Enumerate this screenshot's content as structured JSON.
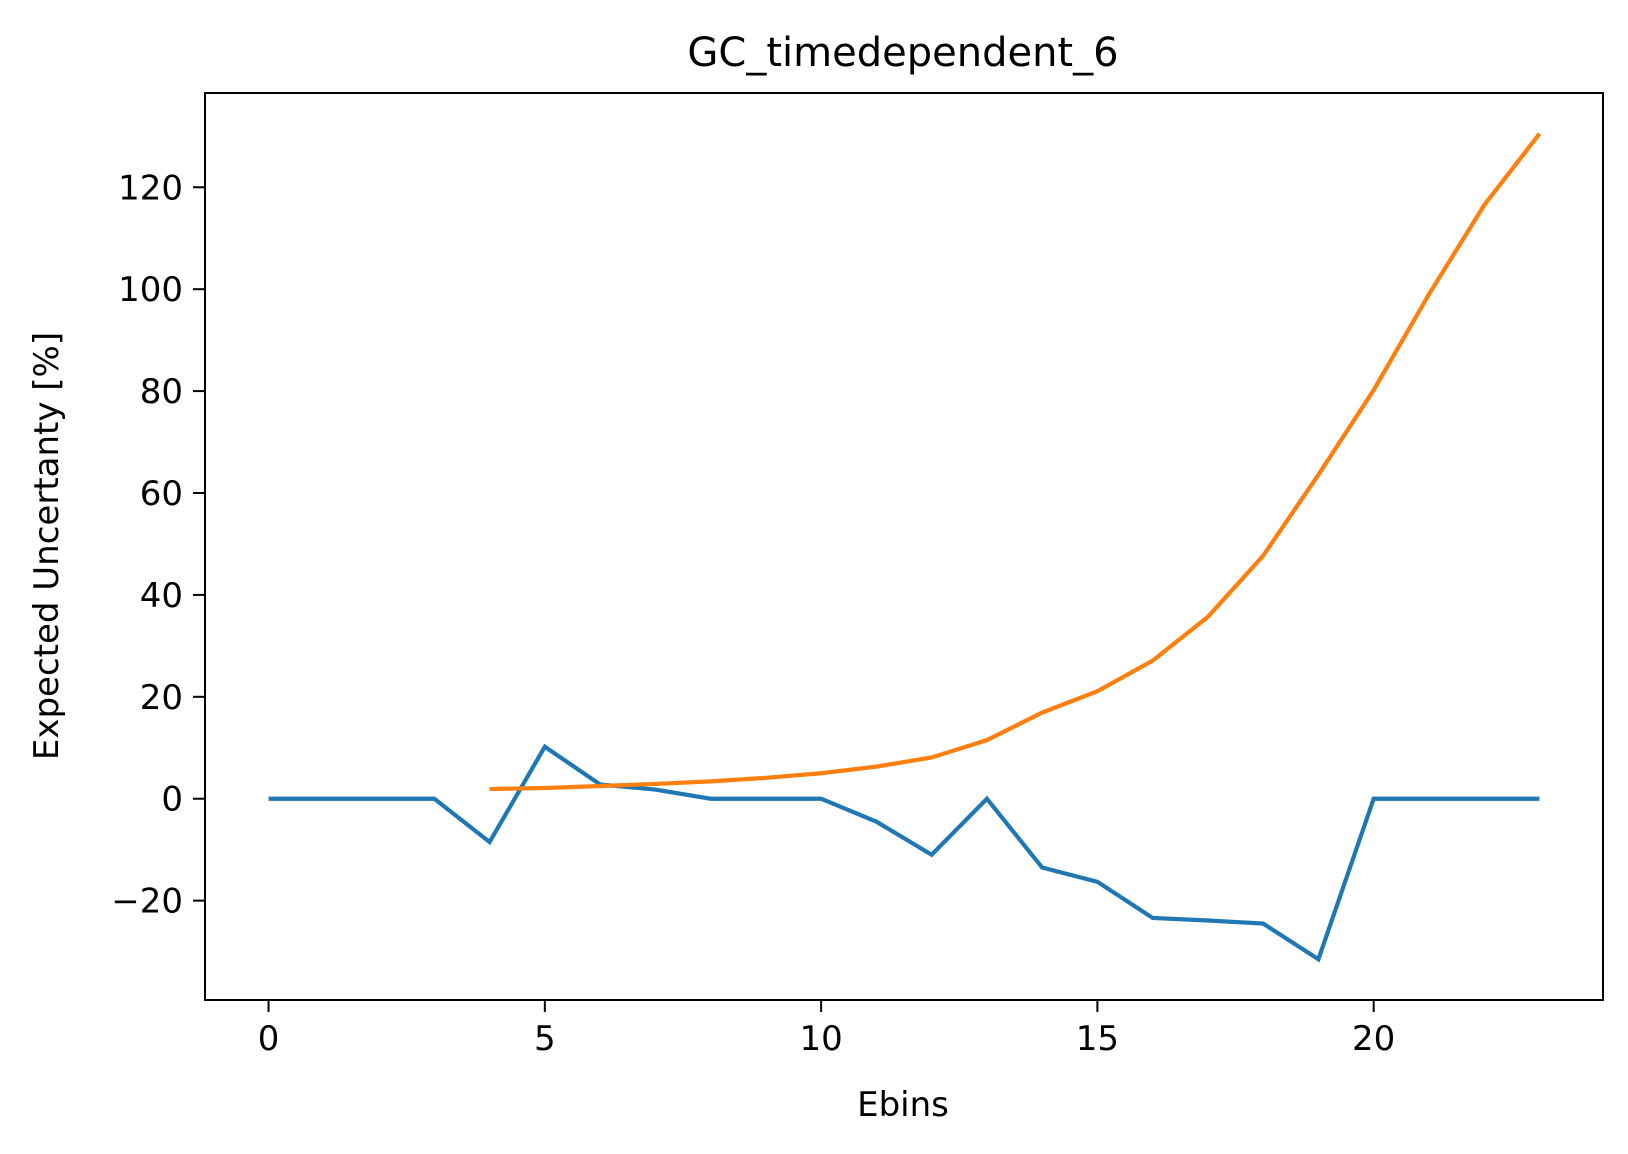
{
  "chart_data": {
    "type": "line",
    "title": "GC_timedependent_6",
    "xlabel": "Ebins",
    "ylabel": "Expected Uncertanty [%]",
    "xlim": [
      -1.15,
      24.15
    ],
    "ylim": [
      -39.5,
      138.5
    ],
    "xticks": [
      0,
      5,
      10,
      15,
      20
    ],
    "xtick_labels": [
      "0",
      "5",
      "10",
      "15",
      "20"
    ],
    "yticks": [
      -20,
      0,
      20,
      40,
      60,
      80,
      100,
      120
    ],
    "ytick_labels": [
      "−20",
      "0",
      "20",
      "40",
      "60",
      "80",
      "100",
      "120"
    ],
    "grid": false,
    "legend": false,
    "series": [
      {
        "color": "#1f77b4",
        "x": [
          0,
          1,
          2,
          3,
          4,
          5,
          6,
          7,
          8,
          9,
          10,
          11,
          12,
          13,
          14,
          15,
          16,
          17,
          18,
          19,
          20,
          21,
          22,
          23
        ],
        "y": [
          0,
          0,
          0,
          0,
          -8.5,
          10.2,
          2.8,
          1.8,
          0,
          0,
          0,
          -4.5,
          -11,
          0,
          -13.5,
          -16.3,
          -23.4,
          -23.9,
          -24.5,
          -31.5,
          0,
          0,
          0,
          0
        ]
      },
      {
        "color": "#ff7f0e",
        "x": [
          4,
          5,
          6,
          7,
          8,
          9,
          10,
          11,
          12,
          13,
          14,
          15,
          16,
          17,
          18,
          19,
          20,
          21,
          22,
          23
        ],
        "y": [
          1.9,
          2.1,
          2.5,
          2.9,
          3.4,
          4.1,
          5.0,
          6.3,
          8.1,
          11.5,
          16.9,
          21.1,
          27.1,
          35.7,
          47.7,
          63.6,
          80.2,
          99.0,
          116.5,
          130.5
        ]
      }
    ]
  }
}
